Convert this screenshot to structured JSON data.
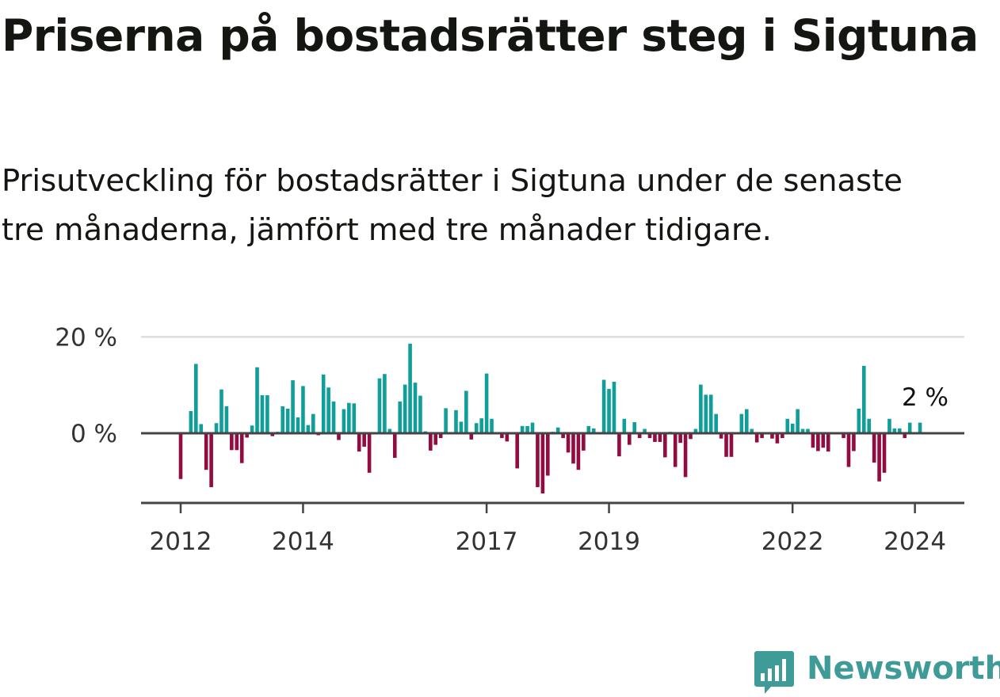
{
  "title": "Priserna på bostadsrätter steg i Sigtuna",
  "subtitle": "Prisutveckling för bostadsrätter i Sigtuna under de senaste tre månaderna, jämfört med tre månader tidigare.",
  "brand": {
    "name": "Newsworthy",
    "color": "#3e9b98",
    "icon": "newsworthy-chart-bubble-icon"
  },
  "colors": {
    "positive": "#0f9e98",
    "negative": "#920b41",
    "axis": "#444444",
    "grid": "#dddddd"
  },
  "chart_data": {
    "type": "bar",
    "ylabel": "",
    "xlabel": "",
    "yticks": [
      {
        "value": 0,
        "label": "0 %"
      },
      {
        "value": 20,
        "label": "20 %"
      }
    ],
    "xticks": [
      {
        "label": "2012",
        "index": 0
      },
      {
        "label": "2014",
        "index": 24
      },
      {
        "label": "2017",
        "index": 60
      },
      {
        "label": "2019",
        "index": 84
      },
      {
        "label": "2022",
        "index": 120
      },
      {
        "label": "2024",
        "index": 144
      }
    ],
    "ylim": [
      -14,
      20
    ],
    "grid": true,
    "annotation": {
      "label": "2 %",
      "value": 2
    },
    "values": [
      -9.5,
      0.0,
      4.6,
      14.4,
      1.9,
      -7.6,
      -11.2,
      2.1,
      9.1,
      5.6,
      -3.5,
      -3.5,
      -6.2,
      -0.9,
      1.6,
      13.7,
      7.9,
      7.9,
      -0.6,
      0.3,
      5.6,
      5.1,
      11.0,
      3.3,
      9.8,
      1.7,
      4.0,
      -0.4,
      12.2,
      9.5,
      6.6,
      -1.4,
      5.0,
      6.3,
      6.2,
      -3.8,
      -2.8,
      -8.2,
      0.0,
      11.4,
      12.3,
      0.9,
      -5.1,
      6.6,
      10.1,
      18.6,
      10.5,
      7.8,
      0.4,
      -3.6,
      -2.4,
      -1.0,
      5.2,
      0.0,
      4.8,
      2.4,
      8.8,
      -1.3,
      2.1,
      3.1,
      12.4,
      3.0,
      0.0,
      -1.0,
      -1.7,
      0.0,
      -7.3,
      1.5,
      1.5,
      2.2,
      -11.2,
      -12.5,
      -8.8,
      0.3,
      1.2,
      -1.0,
      -4.0,
      -6.3,
      -7.6,
      -3.6,
      1.5,
      1.0,
      0.0,
      11.1,
      9.2,
      10.7,
      -4.8,
      3.0,
      -2.4,
      2.3,
      -1.0,
      0.9,
      -1.0,
      -1.8,
      -1.8,
      -5.0,
      0.3,
      -7.0,
      -2.0,
      -9.1,
      -1.2,
      0.9,
      10.1,
      8.0,
      8.0,
      4.0,
      -1.1,
      -4.9,
      -4.9,
      0.0,
      4.0,
      5.0,
      0.9,
      -1.9,
      -1.0,
      0.0,
      -1.1,
      -2.1,
      -1.0,
      3.0,
      2.0,
      5.0,
      0.9,
      0.9,
      -3.0,
      -3.7,
      -3.0,
      -3.8,
      0.0,
      0.0,
      -1.0,
      -7.0,
      -3.7,
      5.1,
      14.0,
      3.0,
      -6.1,
      -10.0,
      -8.2,
      3.0,
      1.0,
      1.0,
      -1.0,
      2.2,
      0.0,
      2.2
    ]
  }
}
